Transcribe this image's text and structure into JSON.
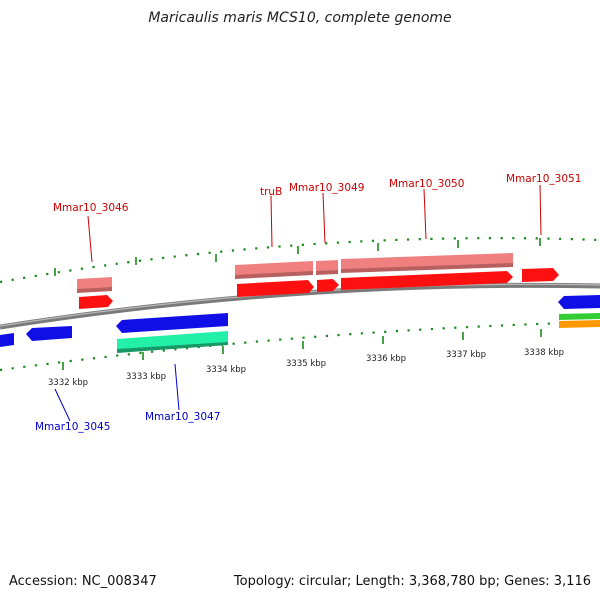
{
  "title": "Maricaulis maris MCS10, complete genome",
  "footer": {
    "accession": "Accession: NC_008347",
    "summary": "Topology: circular; Length: 3,368,780 bp; Genes: 3,116"
  },
  "colors": {
    "backbone": "#808080",
    "forward_gene": "#ff0000",
    "forward_cds": "#f08080",
    "reverse_gene": "#0000e6",
    "reverse_cds_green": "#22e8a0",
    "green": "#33cc33",
    "orange": "#ff9900",
    "tick": "#1a8a1a",
    "label_forward": "#cc0000",
    "label_reverse": "#0000cc"
  },
  "scale": {
    "unit": "kbp",
    "ticks": [
      {
        "value": 3332,
        "label": "3332 kbp"
      },
      {
        "value": 3333,
        "label": "3333 kbp"
      },
      {
        "value": 3334,
        "label": "3334 kbp"
      },
      {
        "value": 3335,
        "label": "3335 kbp"
      },
      {
        "value": 3336,
        "label": "3336 kbp"
      },
      {
        "value": 3337,
        "label": "3337 kbp"
      },
      {
        "value": 3338,
        "label": "3338 kbp"
      }
    ]
  },
  "genes": [
    {
      "id": "Mmar10_3045",
      "strand": "reverse"
    },
    {
      "id": "Mmar10_3046",
      "strand": "forward"
    },
    {
      "id": "Mmar10_3047",
      "strand": "reverse"
    },
    {
      "id": "truB",
      "strand": "forward"
    },
    {
      "id": "Mmar10_3049",
      "strand": "forward"
    },
    {
      "id": "Mmar10_3050",
      "strand": "forward"
    },
    {
      "id": "Mmar10_3051",
      "strand": "forward"
    }
  ]
}
